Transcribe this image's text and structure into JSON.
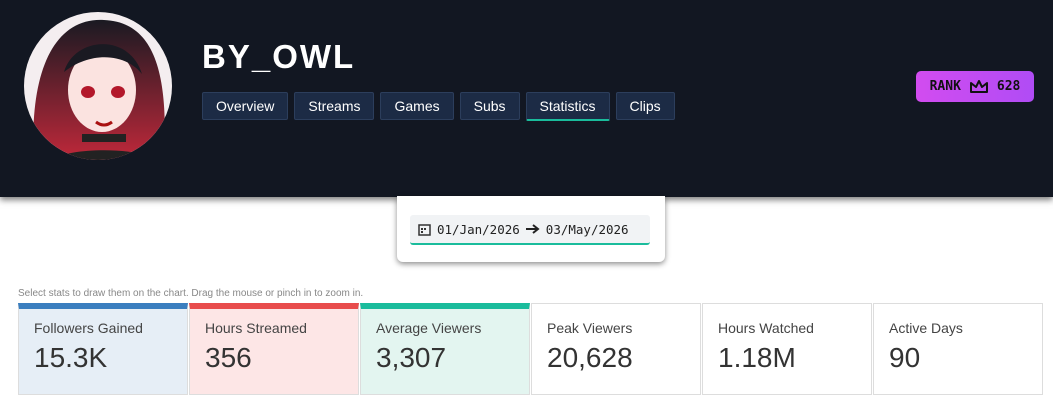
{
  "header": {
    "name": "BY_OWL",
    "tabs": [
      "Overview",
      "Streams",
      "Games",
      "Subs",
      "Statistics",
      "Clips"
    ],
    "active_tab": 4,
    "rank": {
      "label": "RANK",
      "value": 628
    }
  },
  "date_range": {
    "start": "01/Jan/2026",
    "end": "03/May/2026"
  },
  "hint": "Select stats to draw them on the chart. Drag the mouse or pinch in to zoom in.",
  "stats": [
    {
      "label": "Followers Gained",
      "value": "15.3K"
    },
    {
      "label": "Hours Streamed",
      "value": "356"
    },
    {
      "label": "Average Viewers",
      "value": "3,307"
    },
    {
      "label": "Peak Viewers",
      "value": "20,628"
    },
    {
      "label": "Hours Watched",
      "value": "1.18M"
    },
    {
      "label": "Active Days",
      "value": "90"
    }
  ]
}
